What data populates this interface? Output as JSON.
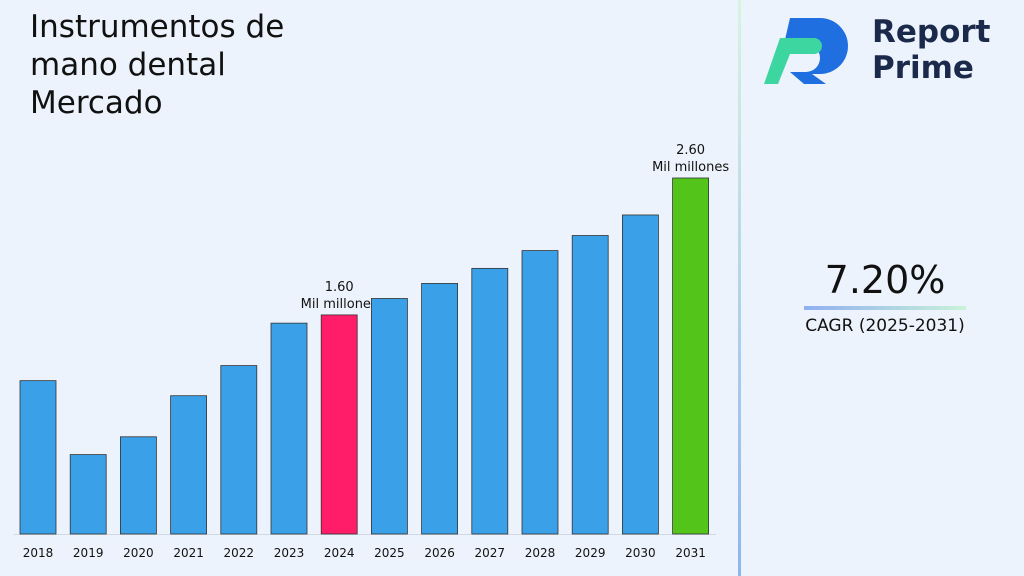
{
  "chart_data": {
    "type": "bar",
    "title": "Instrumentos de mano dental Mercado",
    "categories": [
      "2018",
      "2019",
      "2020",
      "2021",
      "2022",
      "2023",
      "2024",
      "2025",
      "2026",
      "2027",
      "2028",
      "2029",
      "2030",
      "2031"
    ],
    "values": [
      1.12,
      0.58,
      0.71,
      1.01,
      1.23,
      1.54,
      1.6,
      1.72,
      1.83,
      1.94,
      2.07,
      2.18,
      2.33,
      2.6
    ],
    "value_labels": [
      null,
      null,
      null,
      null,
      null,
      null,
      "1.60",
      null,
      null,
      null,
      null,
      null,
      null,
      "2.60"
    ],
    "value_unit": "Mil millones",
    "colors": [
      "#3aa0e8",
      "#3aa0e8",
      "#3aa0e8",
      "#3aa0e8",
      "#3aa0e8",
      "#3aa0e8",
      "#ff1c68",
      "#3aa0e8",
      "#3aa0e8",
      "#3aa0e8",
      "#3aa0e8",
      "#3aa0e8",
      "#3aa0e8",
      "#52c41a"
    ],
    "cagr": {
      "value": "7.20%",
      "label": "CAGR (2025-2031)"
    },
    "logo": {
      "line1": "Report",
      "line2": "Prime"
    }
  }
}
